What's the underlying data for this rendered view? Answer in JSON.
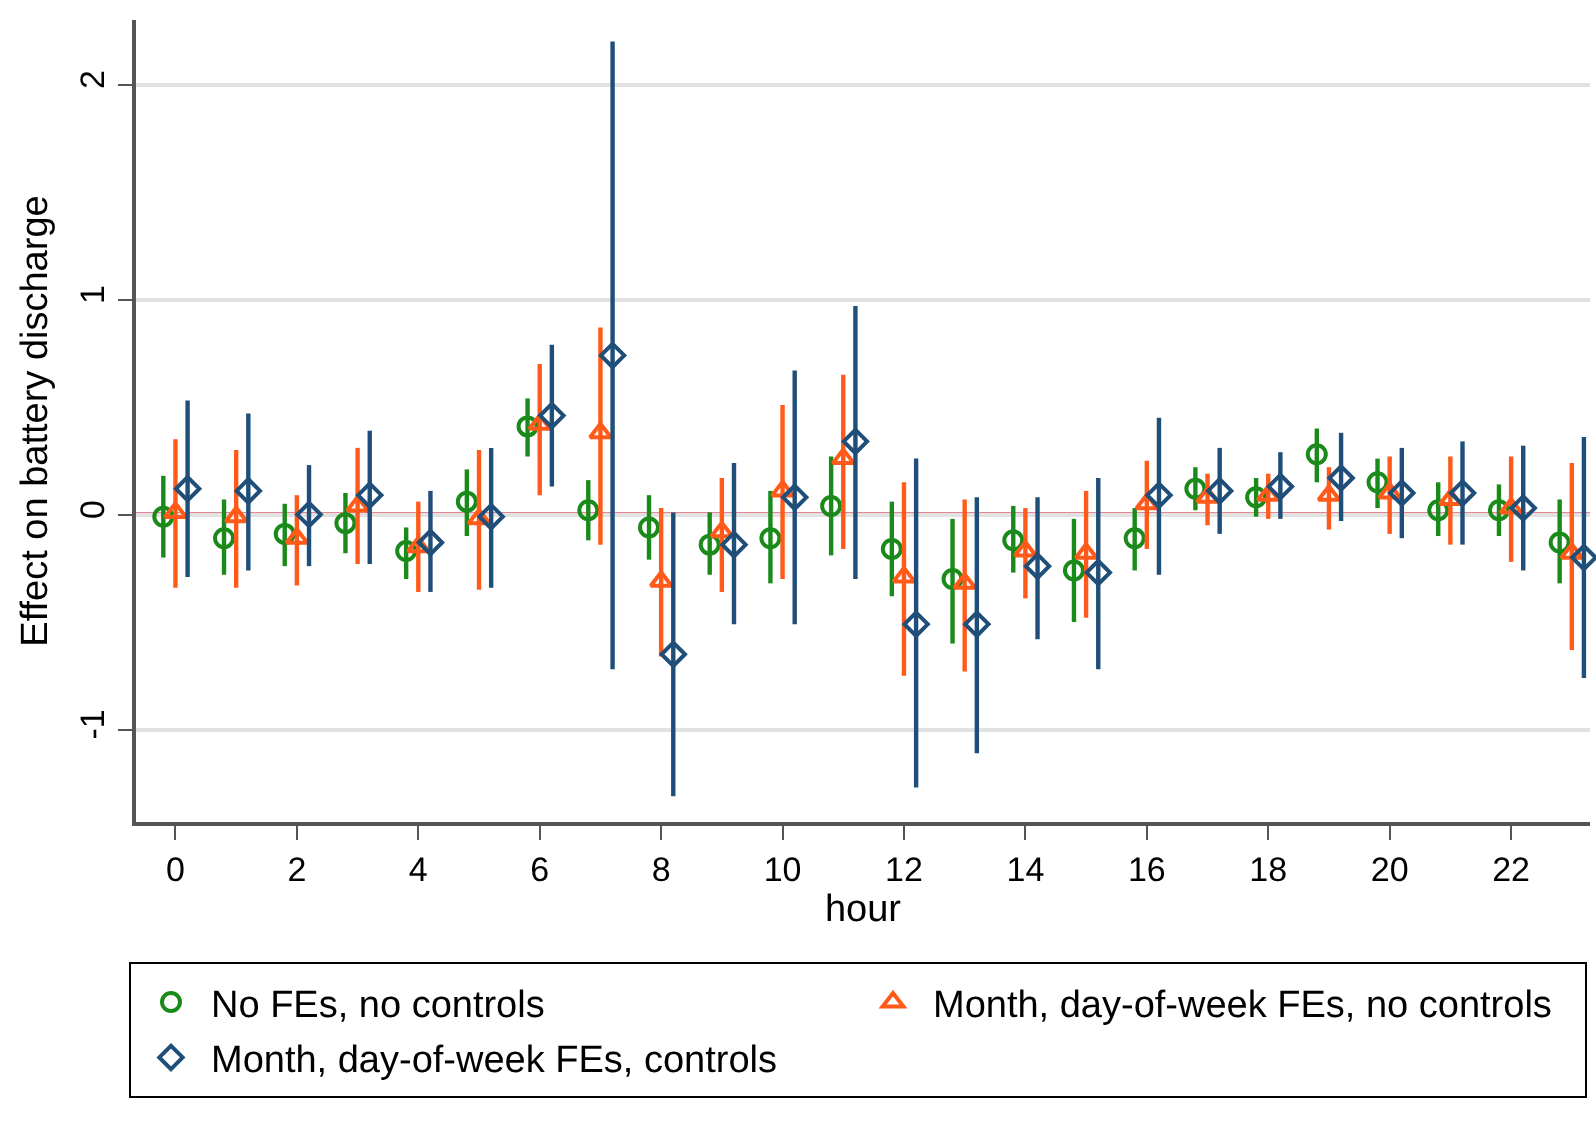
{
  "chart_data": {
    "type": "scatter",
    "xlabel": "hour",
    "ylabel": "Effect on battery discharge",
    "xlim": [
      -0.65,
      23.3
    ],
    "ylim": [
      -1.43,
      2.3
    ],
    "xticks": [
      0,
      2,
      4,
      6,
      8,
      10,
      12,
      14,
      16,
      18,
      20,
      22
    ],
    "yticks": [
      -1,
      0,
      1,
      2
    ],
    "grid": "y",
    "legend": "bottom",
    "ref_lines": [
      {
        "axis": "y",
        "value": 0,
        "color": "#c8102e"
      }
    ],
    "series": [
      {
        "name": "No FEs, no controls",
        "color": "#1a8a1a",
        "marker": "circle",
        "x": [
          -0.2,
          0.8,
          1.8,
          2.8,
          3.8,
          4.8,
          5.8,
          6.8,
          7.8,
          8.8,
          9.8,
          10.8,
          11.8,
          12.8,
          13.8,
          14.8,
          15.8,
          16.8,
          17.8,
          18.8,
          19.8,
          20.8,
          21.8,
          22.8
        ],
        "values": [
          -0.01,
          -0.11,
          -0.09,
          -0.04,
          -0.17,
          0.06,
          0.41,
          0.02,
          -0.06,
          -0.14,
          -0.11,
          0.04,
          -0.16,
          -0.3,
          -0.12,
          -0.26,
          -0.11,
          0.12,
          0.08,
          0.28,
          0.15,
          0.02,
          0.02,
          -0.13
        ],
        "errors": [
          [
            -0.2,
            0.18
          ],
          [
            -0.28,
            0.07
          ],
          [
            -0.24,
            0.05
          ],
          [
            -0.18,
            0.1
          ],
          [
            -0.3,
            -0.06
          ],
          [
            -0.1,
            0.21
          ],
          [
            0.27,
            0.54
          ],
          [
            -0.12,
            0.16
          ],
          [
            -0.21,
            0.09
          ],
          [
            -0.28,
            0.01
          ],
          [
            -0.32,
            0.11
          ],
          [
            -0.19,
            0.27
          ],
          [
            -0.38,
            0.06
          ],
          [
            -0.6,
            -0.02
          ],
          [
            -0.27,
            0.04
          ],
          [
            -0.5,
            -0.02
          ],
          [
            -0.26,
            0.03
          ],
          [
            0.02,
            0.22
          ],
          [
            -0.01,
            0.17
          ],
          [
            0.15,
            0.4
          ],
          [
            0.03,
            0.26
          ],
          [
            -0.1,
            0.15
          ],
          [
            -0.1,
            0.14
          ],
          [
            -0.32,
            0.07
          ]
        ]
      },
      {
        "name": "Month, day-of-week FEs, no controls",
        "color": "#ff5a1a",
        "marker": "triangle",
        "x": [
          0,
          1,
          2,
          3,
          4,
          5,
          6,
          7,
          8,
          9,
          10,
          11,
          12,
          13,
          14,
          15,
          16,
          17,
          18,
          19,
          20,
          21,
          22,
          23
        ],
        "values": [
          0.01,
          -0.01,
          -0.11,
          0.04,
          -0.15,
          -0.02,
          0.42,
          0.38,
          -0.31,
          -0.08,
          0.11,
          0.26,
          -0.29,
          -0.32,
          -0.17,
          -0.18,
          0.05,
          0.08,
          0.09,
          0.09,
          0.1,
          0.07,
          0.03,
          -0.18
        ],
        "errors": [
          [
            -0.34,
            0.35
          ],
          [
            -0.34,
            0.3
          ],
          [
            -0.33,
            0.09
          ],
          [
            -0.23,
            0.31
          ],
          [
            -0.36,
            0.06
          ],
          [
            -0.35,
            0.3
          ],
          [
            0.09,
            0.7
          ],
          [
            -0.14,
            0.87
          ],
          [
            -0.66,
            0.03
          ],
          [
            -0.36,
            0.17
          ],
          [
            -0.3,
            0.51
          ],
          [
            -0.16,
            0.65
          ],
          [
            -0.75,
            0.15
          ],
          [
            -0.73,
            0.07
          ],
          [
            -0.39,
            0.03
          ],
          [
            -0.48,
            0.11
          ],
          [
            -0.16,
            0.25
          ],
          [
            -0.05,
            0.19
          ],
          [
            -0.02,
            0.19
          ],
          [
            -0.07,
            0.22
          ],
          [
            -0.09,
            0.27
          ],
          [
            -0.14,
            0.27
          ],
          [
            -0.22,
            0.27
          ],
          [
            -0.63,
            0.24
          ]
        ]
      },
      {
        "name": "Month, day-of-week FEs, controls",
        "color": "#1f4e79",
        "marker": "diamond",
        "x": [
          0.2,
          1.2,
          2.2,
          3.2,
          4.2,
          5.2,
          6.2,
          7.2,
          8.2,
          9.2,
          10.2,
          11.2,
          12.2,
          13.2,
          14.2,
          15.2,
          16.2,
          17.2,
          18.2,
          19.2,
          20.2,
          21.2,
          22.2,
          23.2
        ],
        "values": [
          0.12,
          0.11,
          0,
          0.09,
          -0.13,
          -0.01,
          0.46,
          0.74,
          -0.65,
          -0.14,
          0.08,
          0.34,
          -0.51,
          -0.51,
          -0.24,
          -0.27,
          0.09,
          0.11,
          0.13,
          0.17,
          0.1,
          0.1,
          0.03,
          -0.2
        ],
        "errors": [
          [
            -0.29,
            0.53
          ],
          [
            -0.26,
            0.47
          ],
          [
            -0.24,
            0.23
          ],
          [
            -0.23,
            0.39
          ],
          [
            -0.36,
            0.11
          ],
          [
            -0.34,
            0.31
          ],
          [
            0.13,
            0.79
          ],
          [
            -0.72,
            2.2
          ],
          [
            -1.31,
            0.01
          ],
          [
            -0.51,
            0.24
          ],
          [
            -0.51,
            0.67
          ],
          [
            -0.3,
            0.97
          ],
          [
            -1.27,
            0.26
          ],
          [
            -1.11,
            0.08
          ],
          [
            -0.58,
            0.08
          ],
          [
            -0.72,
            0.17
          ],
          [
            -0.28,
            0.45
          ],
          [
            -0.09,
            0.31
          ],
          [
            -0.02,
            0.29
          ],
          [
            -0.03,
            0.38
          ],
          [
            -0.11,
            0.31
          ],
          [
            -0.14,
            0.34
          ],
          [
            -0.26,
            0.32
          ],
          [
            -0.76,
            0.36
          ]
        ]
      }
    ]
  }
}
